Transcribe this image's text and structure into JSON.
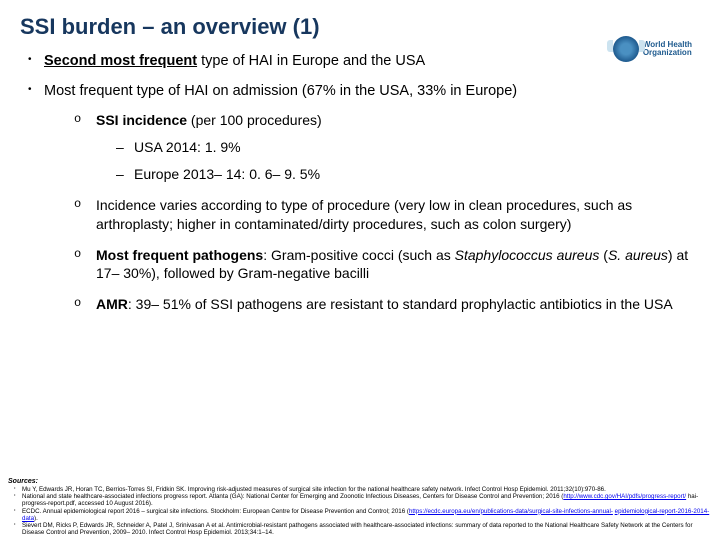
{
  "title": "SSI burden – an overview (1)",
  "logo": {
    "line1": "World Health",
    "line2": "Organization"
  },
  "bullets": {
    "b1_prefix": "Second most frequent",
    "b1_rest": " type of HAI in Europe and the USA",
    "b2": "Most frequent type of HAI on admission (67% in the USA, 33% in Europe)",
    "s1_label": "SSI incidence",
    "s1_rest": " (per 100 procedures)",
    "s1a": "USA 2014: 1. 9%",
    "s1b": "Europe 2013– 14: 0. 6– 9. 5%",
    "s2": "Incidence varies according to type of procedure (very low in clean procedures, such as arthroplasty; higher in contaminated/dirty procedures, such as colon surgery)",
    "s3_label": "Most frequent pathogens",
    "s3_rest_a": ": Gram-positive cocci (such as ",
    "s3_italic1": "Staphylococcus aureus",
    "s3_rest_b": " (",
    "s3_italic2": "S. aureus",
    "s3_rest_c": ") at 17– 30%), followed by Gram-negative bacilli",
    "s4_label": "AMR",
    "s4_rest": ": 39– 51% of SSI pathogens are resistant to standard prophylactic antibiotics in the USA"
  },
  "sources": {
    "heading": "Sources:",
    "r1": "Mu Y, Edwards JR, Horan TC, Berrios-Torres SI, Fridkin SK. Improving risk-adjusted measures of surgical site infection for the national healthcare safety network. Infect Control Hosp Epidemiol. 2011;32(10):970-86.",
    "r2a": "National and state healthcare-associated infections progress report. Atlanta (GA): National Center for Emerging and Zoonotic Infectious Diseases, Centers for Disease Control and Prevention; 2016 (",
    "r2link": "http://www.cdc.gov/HAI/pdfs/progress-report/",
    "r2b": " hai-progress-report.pdf, accessed 10 August 2016).",
    "r3a": "ECDC. Annual epidemiological report 2016 – surgical site infections. Stockholm: European Centre for Disease Prevention and Control; 2016 (",
    "r3link": "https://ecdc.europa.eu/en/publications-data/surgical-site-infections-annual-",
    "r3b": " ",
    "r3link2": "epidemiological-report-2016-2014-data",
    "r3c": ").",
    "r4": "Sievert DM, Ricks P, Edwards JR, Schneider A, Patel J, Srinivasan A et al. Antimicrobial-resistant pathogens associated with healthcare-associated infections: summary of data reported to the National Healthcare Safety Network at the Centers for Disease Control and Prevention, 2009– 2010. Infect Control Hosp Epidemiol. 2013;34:1–14."
  }
}
